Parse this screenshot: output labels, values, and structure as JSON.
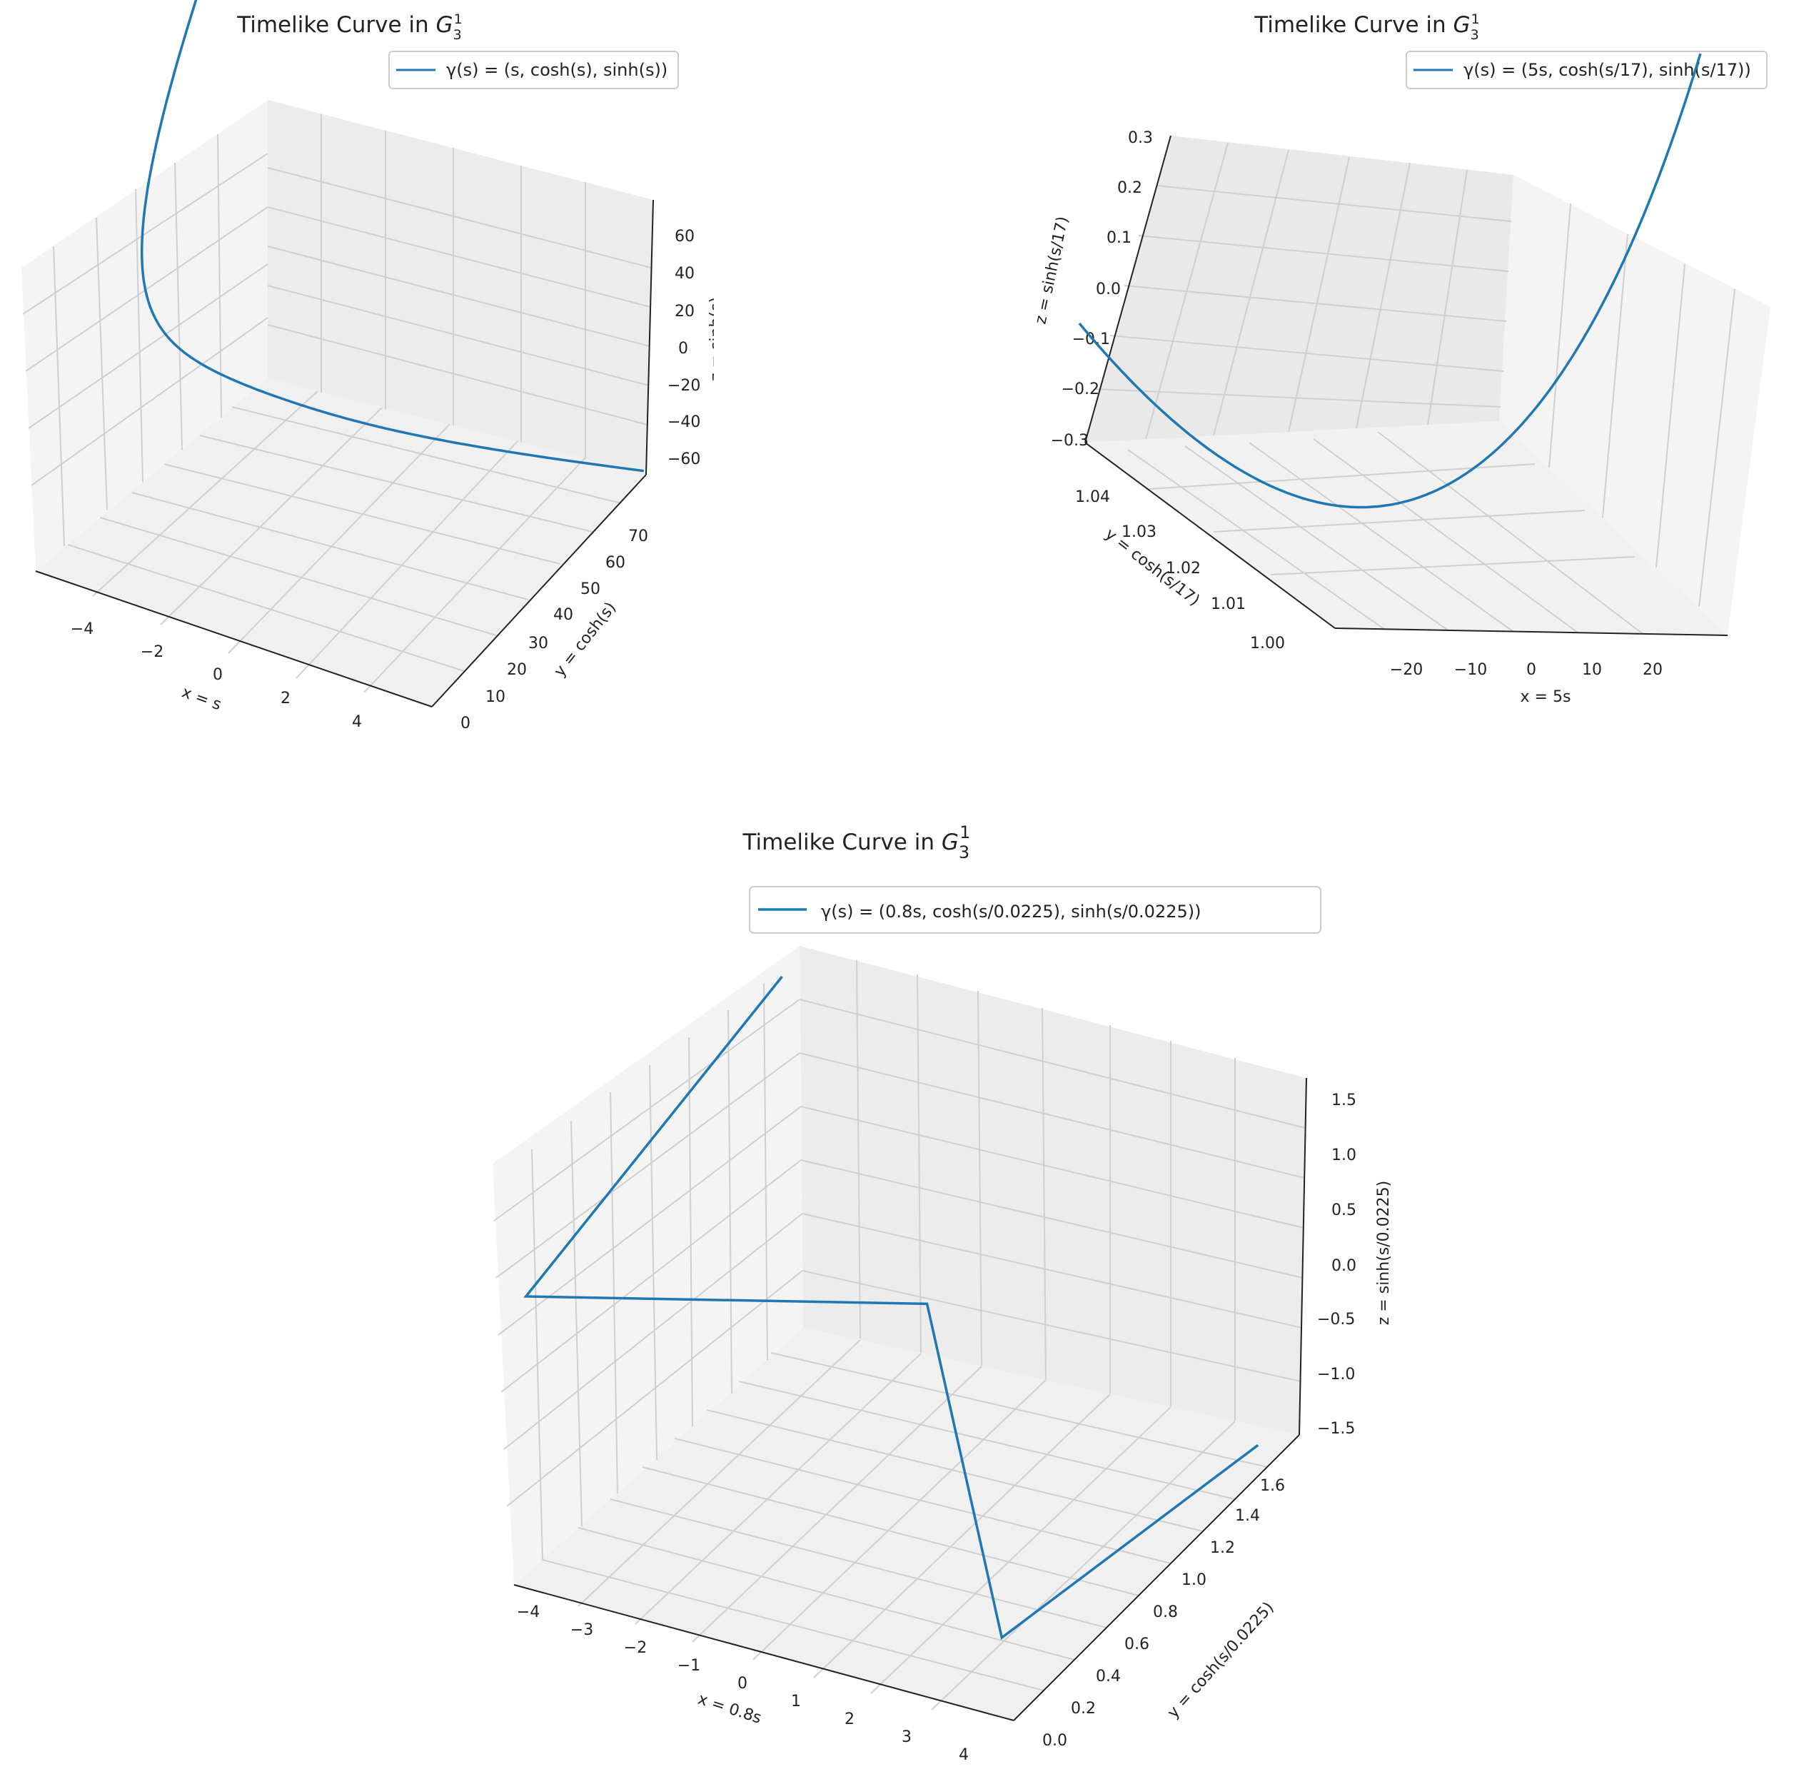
{
  "colors": {
    "line": "#1f77b4",
    "pane": "#f2f2f2",
    "pane_dark": "#e6e6e6",
    "grid": "#c8c8c8",
    "axis": "#222222",
    "legend_border": "#cccccc"
  },
  "chart_data": [
    {
      "id": "top-left",
      "type": "line3d",
      "title": "Timelike Curve in G₃¹",
      "title_main": "Timelike Curve in ",
      "title_var": "G",
      "title_sub": "3",
      "title_sup": "1",
      "legend": "γ(s) = (s, cosh(s), sinh(s))",
      "xlabel": "x = s",
      "ylabel": "y = cosh(s)",
      "zlabel": "z = sinh(s)",
      "xlim": [
        -5,
        5
      ],
      "ylim": [
        0,
        75
      ],
      "zlim": [
        -75,
        75
      ],
      "xticks": [
        "−4",
        "−2",
        "0",
        "2",
        "4"
      ],
      "yticks": [
        "0",
        "10",
        "20",
        "30",
        "40",
        "50",
        "60",
        "70"
      ],
      "zticks": [
        "−60",
        "−40",
        "−20",
        "0",
        "20",
        "40",
        "60"
      ],
      "function": "gamma(s) = (s, cosh(s), sinh(s))",
      "s_range": [
        -5,
        5
      ],
      "sample_points": [
        {
          "s": -5,
          "x": -5,
          "y": 74.21,
          "z": -74.2
        },
        {
          "s": -2.5,
          "x": -2.5,
          "y": 6.13,
          "z": -6.05
        },
        {
          "s": 0,
          "x": 0,
          "y": 1.0,
          "z": 0.0
        },
        {
          "s": 2.5,
          "x": 2.5,
          "y": 6.13,
          "z": 6.05
        },
        {
          "s": 5,
          "x": 5,
          "y": 74.21,
          "z": 74.2
        }
      ]
    },
    {
      "id": "top-right",
      "type": "line3d",
      "title": "Timelike Curve in G₃¹",
      "title_main": "Timelike Curve in ",
      "title_var": "G",
      "title_sub": "3",
      "title_sup": "1",
      "legend": "γ(s) = (5s, cosh(s/17), sinh(s/17))",
      "xlabel": "x = 5s",
      "ylabel": "y = cosh(s/17)",
      "zlabel": "z = sinh(s/17)",
      "xlim": [
        -25,
        25
      ],
      "ylim": [
        1.0,
        1.045
      ],
      "zlim": [
        -0.3,
        0.3
      ],
      "xticks": [
        "−20",
        "−10",
        "0",
        "10",
        "20"
      ],
      "yticks": [
        "1.00",
        "1.01",
        "1.02",
        "1.03",
        "1.04"
      ],
      "zticks": [
        "−0.3",
        "−0.2",
        "−0.1",
        "0.0",
        "0.1",
        "0.2",
        "0.3"
      ],
      "function": "gamma(s) = (5s, cosh(s/17), sinh(s/17))",
      "s_range": [
        -5,
        5
      ],
      "sample_points": [
        {
          "s": -5,
          "x": -25,
          "y": 1.0436,
          "z": -0.2983
        },
        {
          "s": 0,
          "x": 0,
          "y": 1.0,
          "z": 0.0
        },
        {
          "s": 5,
          "x": 25,
          "y": 1.0436,
          "z": 0.2983
        }
      ]
    },
    {
      "id": "bottom",
      "type": "line3d",
      "title": "Timelike Curve in G₃¹",
      "title_main": "Timelike Curve in ",
      "title_var": "G",
      "title_sub": "3",
      "title_sup": "1",
      "legend": "γ(s) = (0.8s, cosh(s/0.0225), sinh(s/0.0225))",
      "xlabel": "x = 0.8s",
      "ylabel": "y = cosh(s/0.0225)",
      "zlabel": "z = sinh(s/0.0225)",
      "xlim": [
        -4.2,
        4.2
      ],
      "ylim": [
        0,
        1.75
      ],
      "zlim": [
        -1.75,
        1.75
      ],
      "xticks": [
        "−4",
        "−3",
        "−2",
        "−1",
        "0",
        "1",
        "2",
        "3",
        "4"
      ],
      "yticks": [
        "0.0",
        "0.2",
        "0.4",
        "0.6",
        "0.8",
        "1.0",
        "1.2",
        "1.4",
        "1.6"
      ],
      "zticks": [
        "−1.5",
        "−1.0",
        "−0.5",
        "0.0",
        "0.5",
        "1.0",
        "1.5"
      ],
      "function": "gamma(s) = (0.8s, cosh(s/0.0225), sinh(s/0.0225))",
      "polyline_points": [
        {
          "x": -4.0,
          "y": 1.57,
          "z": -1.6
        },
        {
          "x": -4.0,
          "y": 0.0,
          "z": -1.0
        },
        {
          "x": 0.0,
          "y": 1.0,
          "z": 0.0
        },
        {
          "x": 4.0,
          "y": 0.0,
          "z": 1.0
        },
        {
          "x": 4.0,
          "y": 1.57,
          "z": 1.6
        }
      ]
    }
  ]
}
